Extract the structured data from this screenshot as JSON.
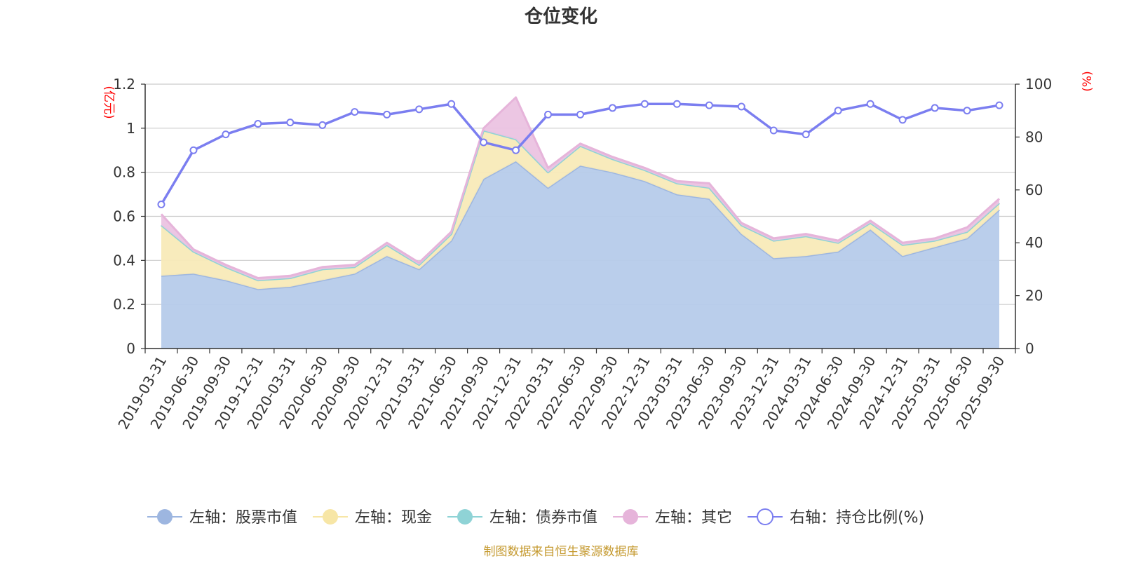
{
  "chart_data": {
    "type": "area",
    "title": "仓位变化",
    "left_unit": "(亿元)",
    "right_unit": "(%)",
    "ylim_left": [
      0,
      1.2
    ],
    "yticks_left": [
      "0",
      "0.2",
      "0.4",
      "0.6",
      "0.8",
      "1",
      "1.2"
    ],
    "ylim_right": [
      0,
      100
    ],
    "yticks_right": [
      "0",
      "20",
      "40",
      "60",
      "80",
      "100"
    ],
    "categories": [
      "2019-03-31",
      "2019-06-30",
      "2019-09-30",
      "2019-12-31",
      "2020-03-31",
      "2020-06-30",
      "2020-09-30",
      "2020-12-31",
      "2021-03-31",
      "2021-06-30",
      "2021-09-30",
      "2021-12-31",
      "2022-03-31",
      "2022-06-30",
      "2022-09-30",
      "2022-12-31",
      "2023-03-31",
      "2023-06-30",
      "2023-09-30",
      "2023-12-31",
      "2024-03-31",
      "2024-06-30",
      "2024-09-30",
      "2024-12-31",
      "2025-03-31",
      "2025-06-30",
      "2025-09-30"
    ],
    "stacked_series": [
      {
        "name": "左轴：股票市值",
        "color": "#9db6e0",
        "fill": "#b6cbea",
        "values": [
          0.33,
          0.34,
          0.31,
          0.27,
          0.28,
          0.31,
          0.34,
          0.42,
          0.36,
          0.49,
          0.77,
          0.85,
          0.73,
          0.83,
          0.8,
          0.76,
          0.7,
          0.68,
          0.52,
          0.41,
          0.42,
          0.44,
          0.54,
          0.42,
          0.46,
          0.5,
          0.63
        ]
      },
      {
        "name": "左轴：现金",
        "color": "#f7e6a6",
        "fill": "#f8eab8",
        "values": [
          0.23,
          0.1,
          0.06,
          0.04,
          0.04,
          0.05,
          0.03,
          0.05,
          0.02,
          0.03,
          0.22,
          0.1,
          0.07,
          0.09,
          0.06,
          0.05,
          0.05,
          0.05,
          0.04,
          0.08,
          0.09,
          0.04,
          0.03,
          0.05,
          0.03,
          0.03,
          0.03
        ]
      },
      {
        "name": "左轴：债券市值",
        "color": "#8fd3d6",
        "fill": "#a8dee0",
        "values": [
          0,
          0,
          0,
          0,
          0,
          0,
          0,
          0,
          0,
          0,
          0,
          0,
          0,
          0,
          0,
          0,
          0,
          0,
          0,
          0,
          0,
          0,
          0,
          0,
          0,
          0,
          0
        ]
      },
      {
        "name": "左轴：其它",
        "color": "#e6b4da",
        "fill": "#ebc3e1",
        "values": [
          0.05,
          0.01,
          0.01,
          0.01,
          0.01,
          0.01,
          0.01,
          0.01,
          0.01,
          0.01,
          0.01,
          0.19,
          0.02,
          0.01,
          0.01,
          0.01,
          0.01,
          0.02,
          0.01,
          0.01,
          0.01,
          0.01,
          0.01,
          0.01,
          0.01,
          0.02,
          0.02
        ]
      }
    ],
    "line_series": {
      "name": "右轴：持仓比例(%)",
      "color": "#7b7ef0",
      "values": [
        54.5,
        75,
        81,
        85,
        85.5,
        84.5,
        89.5,
        88.5,
        90.5,
        92.5,
        78,
        75,
        88.5,
        88.5,
        91,
        92.5,
        92.5,
        92,
        91.5,
        82.5,
        81,
        90,
        92.5,
        86.5,
        91,
        90,
        92
      ]
    },
    "legend_position": "bottom",
    "grid": true
  },
  "footer": "制图数据来自恒生聚源数据库"
}
